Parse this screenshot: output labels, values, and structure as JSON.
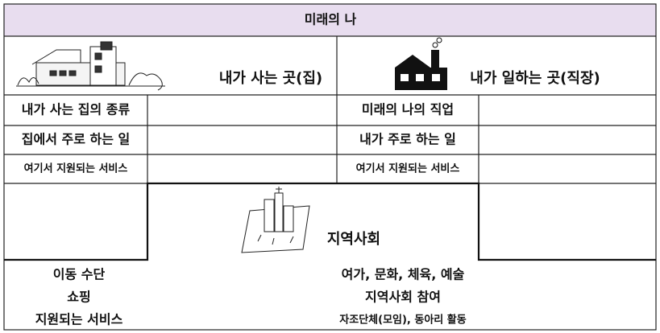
{
  "title": "미래의 나",
  "home": {
    "heading": "내가 사는 곳(집)",
    "rows": [
      "내가 사는 집의 종류",
      "집에서 주로 하는 일",
      "여기서 지원되는 서비스"
    ]
  },
  "work": {
    "heading": "내가 일하는 곳(직장)",
    "rows": [
      "미래의 나의 직업",
      "내가 주로 하는 일",
      "여기서 지원되는 서비스"
    ]
  },
  "community": {
    "heading": "지역사회",
    "left": [
      "이동 수단",
      "쇼핑",
      "지원되는 서비스"
    ],
    "right": [
      "여가, 문화, 체육, 예술",
      "지역사회 참여",
      "자조단체(모임), 동아리 활동"
    ]
  }
}
